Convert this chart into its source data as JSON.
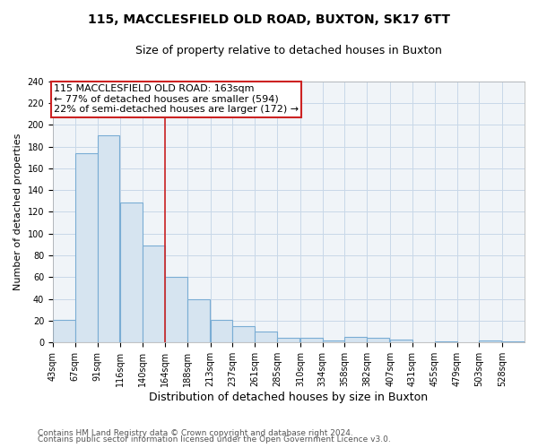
{
  "title": "115, MACCLESFIELD OLD ROAD, BUXTON, SK17 6TT",
  "subtitle": "Size of property relative to detached houses in Buxton",
  "xlabel": "Distribution of detached houses by size in Buxton",
  "ylabel": "Number of detached properties",
  "annotation_line1": "115 MACCLESFIELD OLD ROAD: 163sqm",
  "annotation_line2": "← 77% of detached houses are smaller (594)",
  "annotation_line3": "22% of semi-detached houses are larger (172) →",
  "bar_color": "#d6e4f0",
  "bar_edge_color": "#7aadd4",
  "vline_color": "#cc2222",
  "vline_x": 164,
  "categories": [
    "43sqm",
    "67sqm",
    "91sqm",
    "116sqm",
    "140sqm",
    "164sqm",
    "188sqm",
    "213sqm",
    "237sqm",
    "261sqm",
    "285sqm",
    "310sqm",
    "334sqm",
    "358sqm",
    "382sqm",
    "407sqm",
    "431sqm",
    "455sqm",
    "479sqm",
    "503sqm",
    "528sqm"
  ],
  "bin_edges": [
    43,
    67,
    91,
    116,
    140,
    164,
    188,
    213,
    237,
    261,
    285,
    310,
    334,
    358,
    382,
    407,
    431,
    455,
    479,
    503,
    528
  ],
  "bin_width": 24,
  "values": [
    21,
    174,
    190,
    129,
    89,
    60,
    40,
    21,
    15,
    10,
    4,
    4,
    2,
    5,
    4,
    3,
    0,
    1,
    0,
    2,
    1
  ],
  "ylim": [
    0,
    240
  ],
  "yticks": [
    0,
    20,
    40,
    60,
    80,
    100,
    120,
    140,
    160,
    180,
    200,
    220,
    240
  ],
  "background_color": "#ffffff",
  "plot_bg_color": "#f0f4f8",
  "grid_color": "#c8d8e8",
  "footer1": "Contains HM Land Registry data © Crown copyright and database right 2024.",
  "footer2": "Contains public sector information licensed under the Open Government Licence v3.0.",
  "annotation_box_edgecolor": "#cc2222",
  "title_fontsize": 10,
  "subtitle_fontsize": 9,
  "ylabel_fontsize": 8,
  "xlabel_fontsize": 9,
  "tick_fontsize": 7,
  "annotation_fontsize": 8,
  "footer_fontsize": 6.5
}
